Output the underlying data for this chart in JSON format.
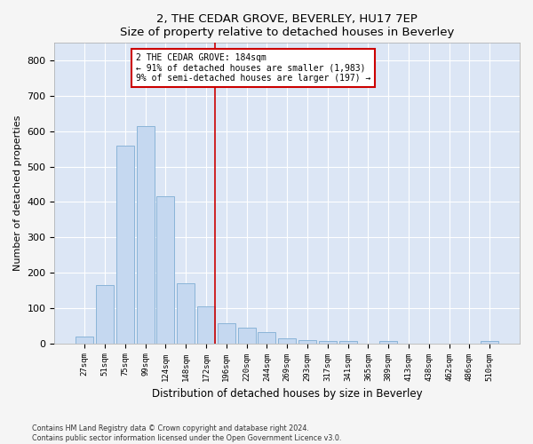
{
  "title": "2, THE CEDAR GROVE, BEVERLEY, HU17 7EP",
  "subtitle": "Size of property relative to detached houses in Beverley",
  "xlabel": "Distribution of detached houses by size in Beverley",
  "ylabel": "Number of detached properties",
  "footnote1": "Contains HM Land Registry data © Crown copyright and database right 2024.",
  "footnote2": "Contains public sector information licensed under the Open Government Licence v3.0.",
  "categories": [
    "27sqm",
    "51sqm",
    "75sqm",
    "99sqm",
    "124sqm",
    "148sqm",
    "172sqm",
    "196sqm",
    "220sqm",
    "244sqm",
    "269sqm",
    "293sqm",
    "317sqm",
    "341sqm",
    "365sqm",
    "389sqm",
    "413sqm",
    "438sqm",
    "462sqm",
    "486sqm",
    "510sqm"
  ],
  "values": [
    20,
    165,
    560,
    615,
    415,
    170,
    105,
    57,
    44,
    33,
    14,
    10,
    8,
    8,
    0,
    6,
    0,
    0,
    0,
    0,
    6
  ],
  "bar_color": "#c5d8f0",
  "bar_edge_color": "#8ab4d8",
  "vline_x": 6.42,
  "vline_color": "#cc0000",
  "annotation_text": "2 THE CEDAR GROVE: 184sqm\n← 91% of detached houses are smaller (1,983)\n9% of semi-detached houses are larger (197) →",
  "annotation_box_color": "#ffffff",
  "annotation_box_edge_color": "#cc0000",
  "ylim": [
    0,
    850
  ],
  "yticks": [
    0,
    100,
    200,
    300,
    400,
    500,
    600,
    700,
    800
  ],
  "plot_bg_color": "#dce6f5",
  "fig_bg_color": "#f5f5f5",
  "figsize": [
    6.0,
    5.0
  ],
  "dpi": 100
}
